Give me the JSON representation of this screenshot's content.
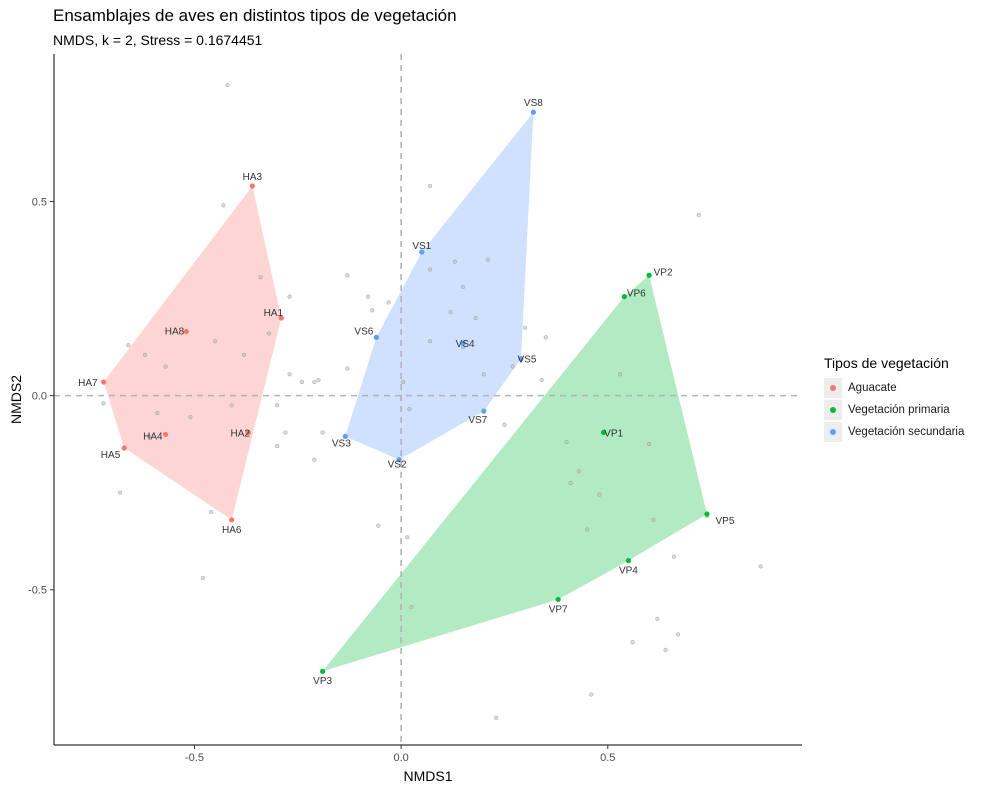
{
  "chart_data": {
    "type": "scatter",
    "title": "Ensamblajes de aves en distintos tipos de vegetación",
    "subtitle": "NMDS, k = 2, Stress = 0.1674451",
    "xlabel": "NMDS1",
    "ylabel": "NMDS2",
    "xlim": [
      -0.84,
      0.97
    ],
    "ylim": [
      -0.9,
      0.88
    ],
    "xticks": [
      -0.5,
      0.0,
      0.5
    ],
    "yticks": [
      -0.5,
      0.0,
      0.5
    ],
    "xtick_labels": [
      "-0.5",
      "0.0",
      "0.5"
    ],
    "ytick_labels": [
      "-0.5",
      "0.0",
      "0.5"
    ],
    "grid": false,
    "reference_lines": {
      "x": 0,
      "y": 0
    },
    "legend": {
      "title": "Tipos de vegetación",
      "position": "right",
      "entries": [
        {
          "label": "Aguacate",
          "color": "#F8766D"
        },
        {
          "label": "Vegetación primaria",
          "color": "#00BA38"
        },
        {
          "label": "Vegetación secundaria",
          "color": "#619CFF"
        }
      ]
    },
    "series": [
      {
        "name": "Aguacate",
        "color": "#F8766D",
        "hull_fill": "#F8766D",
        "points": [
          {
            "label": "HA1",
            "x": -0.29,
            "y": 0.2
          },
          {
            "label": "HA2",
            "x": -0.37,
            "y": -0.095
          },
          {
            "label": "HA3",
            "x": -0.36,
            "y": 0.54
          },
          {
            "label": "HA4",
            "x": -0.57,
            "y": -0.1
          },
          {
            "label": "HA5",
            "x": -0.67,
            "y": -0.135
          },
          {
            "label": "HA6",
            "x": -0.41,
            "y": -0.32
          },
          {
            "label": "HA7",
            "x": -0.72,
            "y": 0.035
          },
          {
            "label": "HA8",
            "x": -0.52,
            "y": 0.165
          }
        ]
      },
      {
        "name": "Vegetación primaria",
        "color": "#00BA38",
        "hull_fill": "#00BA38",
        "points": [
          {
            "label": "VP1",
            "x": 0.49,
            "y": -0.095
          },
          {
            "label": "VP2",
            "x": 0.6,
            "y": 0.31
          },
          {
            "label": "VP3",
            "x": -0.19,
            "y": -0.71
          },
          {
            "label": "VP4",
            "x": 0.55,
            "y": -0.425
          },
          {
            "label": "VP5",
            "x": 0.74,
            "y": -0.305
          },
          {
            "label": "VP6",
            "x": 0.54,
            "y": 0.255
          },
          {
            "label": "VP7",
            "x": 0.38,
            "y": -0.525
          }
        ]
      },
      {
        "name": "Vegetación secundaria",
        "color": "#619CFF",
        "hull_fill": "#619CFF",
        "points": [
          {
            "label": "VS1",
            "x": 0.05,
            "y": 0.37
          },
          {
            "label": "VS2",
            "x": -0.005,
            "y": -0.165
          },
          {
            "label": "VS3",
            "x": -0.135,
            "y": -0.105
          },
          {
            "label": "VS4",
            "x": 0.15,
            "y": 0.135
          },
          {
            "label": "VS5",
            "x": 0.29,
            "y": 0.095
          },
          {
            "label": "VS6",
            "x": -0.06,
            "y": 0.15
          },
          {
            "label": "VS7",
            "x": 0.2,
            "y": -0.04
          },
          {
            "label": "VS8",
            "x": 0.32,
            "y": 0.73
          }
        ]
      }
    ],
    "species_points": [
      [
        -0.42,
        0.8
      ],
      [
        -0.43,
        0.49
      ],
      [
        -0.66,
        0.13
      ],
      [
        -0.62,
        0.105
      ],
      [
        -0.57,
        0.075
      ],
      [
        -0.59,
        -0.045
      ],
      [
        -0.51,
        -0.055
      ],
      [
        -0.61,
        -0.105
      ],
      [
        -0.68,
        -0.25
      ],
      [
        -0.48,
        -0.47
      ],
      [
        -0.46,
        -0.3
      ],
      [
        -0.45,
        0.14
      ],
      [
        -0.38,
        0.105
      ],
      [
        -0.41,
        -0.025
      ],
      [
        -0.34,
        0.305
      ],
      [
        -0.32,
        0.16
      ],
      [
        -0.3,
        -0.025
      ],
      [
        -0.27,
        0.255
      ],
      [
        -0.28,
        -0.095
      ],
      [
        -0.3,
        -0.13
      ],
      [
        -0.27,
        0.055
      ],
      [
        -0.24,
        0.035
      ],
      [
        -0.21,
        -0.165
      ],
      [
        -0.21,
        0.035
      ],
      [
        -0.2,
        0.04
      ],
      [
        -0.19,
        -0.095
      ],
      [
        -0.13,
        0.31
      ],
      [
        -0.13,
        0.07
      ],
      [
        -0.08,
        0.255
      ],
      [
        -0.07,
        0.22
      ],
      [
        -0.055,
        -0.335
      ],
      [
        -0.03,
        0.24
      ],
      [
        0.005,
        0.035
      ],
      [
        0.015,
        -0.365
      ],
      [
        0.02,
        -0.035
      ],
      [
        0.025,
        -0.545
      ],
      [
        0.07,
        0.325
      ],
      [
        0.07,
        0.54
      ],
      [
        0.07,
        0.14
      ],
      [
        0.12,
        0.215
      ],
      [
        0.13,
        0.345
      ],
      [
        0.15,
        0.28
      ],
      [
        0.15,
        0.125
      ],
      [
        0.18,
        0.2
      ],
      [
        0.21,
        0.35
      ],
      [
        0.2,
        0.055
      ],
      [
        0.25,
        -0.075
      ],
      [
        0.27,
        0.075
      ],
      [
        0.3,
        0.175
      ],
      [
        0.34,
        0.04
      ],
      [
        0.35,
        0.15
      ],
      [
        0.4,
        -0.12
      ],
      [
        0.41,
        -0.225
      ],
      [
        0.43,
        -0.195
      ],
      [
        0.45,
        -0.345
      ],
      [
        0.46,
        -0.77
      ],
      [
        0.48,
        -0.255
      ],
      [
        0.53,
        0.055
      ],
      [
        0.56,
        -0.635
      ],
      [
        0.6,
        -0.125
      ],
      [
        0.61,
        -0.32
      ],
      [
        0.62,
        -0.575
      ],
      [
        0.64,
        -0.655
      ],
      [
        0.66,
        -0.415
      ],
      [
        0.67,
        -0.615
      ],
      [
        0.72,
        0.465
      ],
      [
        0.74,
        -0.31
      ],
      [
        0.87,
        -0.44
      ],
      [
        0.23,
        -0.83
      ],
      [
        -0.72,
        -0.02
      ]
    ]
  }
}
